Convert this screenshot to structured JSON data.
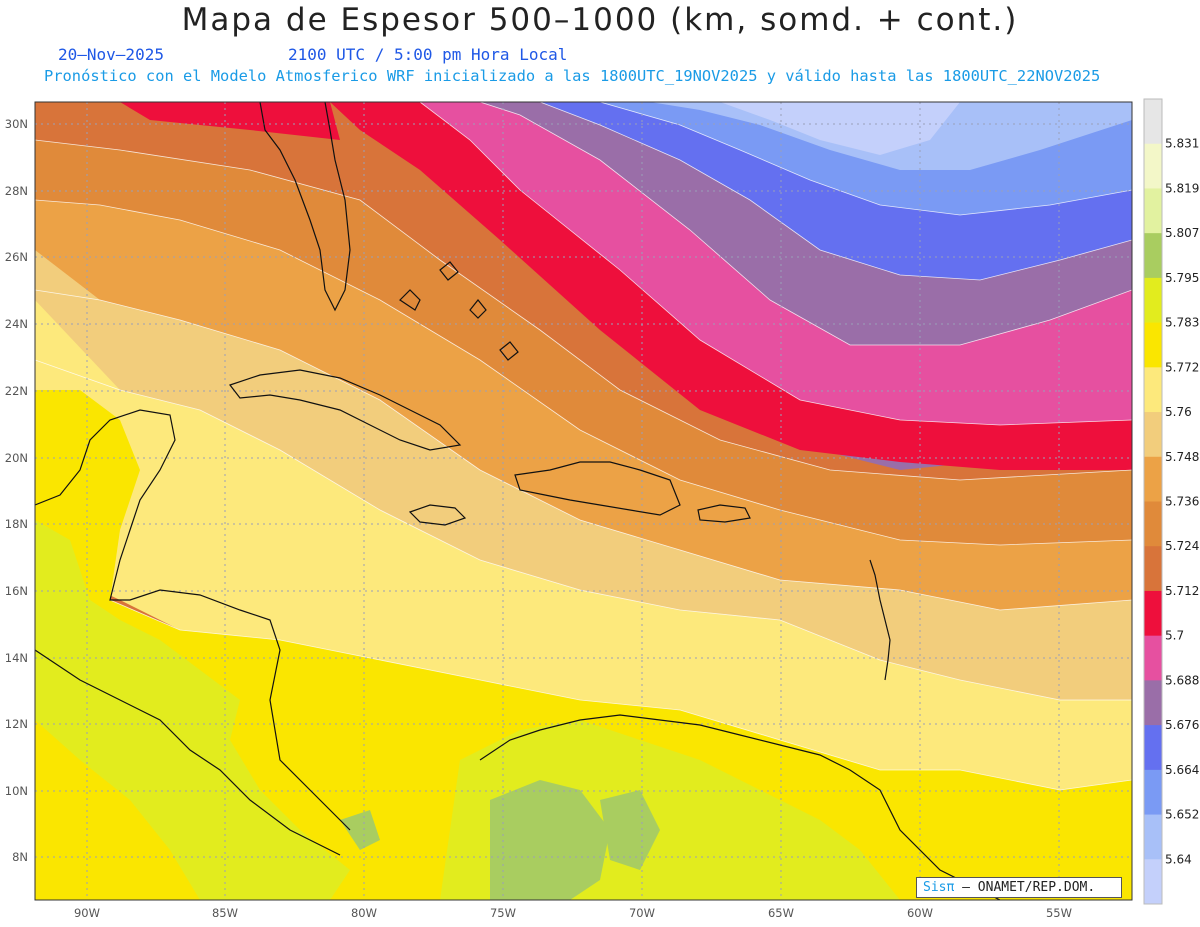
{
  "title": "Mapa de Espesor 500–1000 (km, somd. + cont.)",
  "subtitle": {
    "date": "20–Nov–2025",
    "time": "2100 UTC / 5:00 pm Hora Local",
    "forecast": "Pronóstico con el Modelo Atmosferico WRF inicializado a las 1800UTC_19NOV2025 y válido hasta las  1800UTC_22NOV2025"
  },
  "axes": {
    "lat_labels": [
      "30N",
      "28N",
      "26N",
      "24N",
      "22N",
      "20N",
      "18N",
      "16N",
      "14N",
      "12N",
      "10N",
      "8N"
    ],
    "lon_labels": [
      "90W",
      "85W",
      "80W",
      "75W",
      "70W",
      "65W",
      "60W",
      "55W"
    ]
  },
  "legend": {
    "labels": [
      "5.831",
      "5.819",
      "5.807",
      "5.795",
      "5.783",
      "5.772",
      "5.76",
      "5.748",
      "5.736",
      "5.724",
      "5.712",
      "5.7",
      "5.688",
      "5.676",
      "5.664",
      "5.652",
      "5.64"
    ],
    "colors": [
      "#e6e6e6",
      "#f3f7c8",
      "#e2f2a0",
      "#a9cd60",
      "#e2ec1e",
      "#fae600",
      "#fde97c",
      "#f2cd7c",
      "#eca246",
      "#e08a3a",
      "#d8743a",
      "#ee0f3c",
      "#e650a0",
      "#9a6ea8",
      "#6470f0",
      "#7a9af4",
      "#a8c0f8",
      "#c4d0fb"
    ]
  },
  "credit": {
    "sis": "Sis",
    "pi": "π",
    "org": "– ONAMET/REP.DOM."
  }
}
